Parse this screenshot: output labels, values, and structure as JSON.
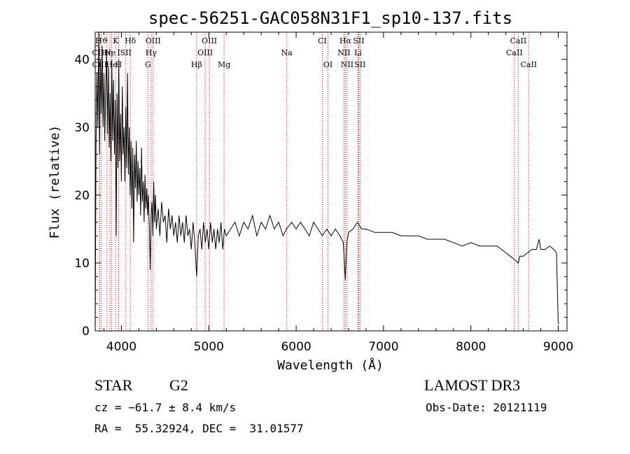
{
  "chart_data": {
    "type": "line",
    "title": "spec-56251-GAC058N31F1_sp10-137.fits",
    "xlabel": "Wavelength (Å)",
    "ylabel": "Flux (relative)",
    "xlim": [
      3700,
      9100
    ],
    "ylim": [
      0,
      44
    ],
    "xticks": [
      4000,
      5000,
      6000,
      7000,
      8000,
      9000
    ],
    "yticks": [
      0,
      10,
      20,
      30,
      40
    ],
    "series": [
      {
        "name": "flux",
        "x": [
          3700,
          3710,
          3720,
          3730,
          3740,
          3750,
          3760,
          3770,
          3780,
          3790,
          3800,
          3810,
          3820,
          3830,
          3840,
          3850,
          3860,
          3870,
          3880,
          3890,
          3900,
          3910,
          3920,
          3930,
          3940,
          3950,
          3960,
          3970,
          3980,
          3990,
          4000,
          4010,
          4020,
          4030,
          4040,
          4050,
          4060,
          4070,
          4080,
          4090,
          4100,
          4110,
          4120,
          4130,
          4140,
          4150,
          4160,
          4170,
          4180,
          4190,
          4200,
          4210,
          4220,
          4230,
          4240,
          4250,
          4260,
          4270,
          4280,
          4290,
          4300,
          4310,
          4320,
          4330,
          4340,
          4350,
          4360,
          4370,
          4380,
          4390,
          4400,
          4420,
          4440,
          4460,
          4480,
          4500,
          4520,
          4540,
          4560,
          4580,
          4600,
          4620,
          4640,
          4660,
          4680,
          4700,
          4720,
          4740,
          4760,
          4780,
          4800,
          4820,
          4840,
          4861,
          4880,
          4900,
          4920,
          4940,
          4960,
          4980,
          5000,
          5020,
          5040,
          5060,
          5080,
          5100,
          5120,
          5140,
          5160,
          5180,
          5200,
          5250,
          5300,
          5350,
          5400,
          5450,
          5500,
          5550,
          5600,
          5650,
          5700,
          5750,
          5800,
          5850,
          5890,
          5950,
          6000,
          6050,
          6100,
          6150,
          6200,
          6250,
          6300,
          6350,
          6400,
          6450,
          6500,
          6540,
          6563,
          6580,
          6600,
          6650,
          6700,
          6750,
          6800,
          6900,
          7000,
          7100,
          7200,
          7300,
          7400,
          7500,
          7600,
          7700,
          7800,
          7900,
          8000,
          8100,
          8200,
          8300,
          8400,
          8450,
          8500,
          8542,
          8560,
          8600,
          8650,
          8700,
          8750,
          8780,
          8800,
          8850,
          8900,
          8950,
          8980,
          8990,
          9000
        ],
        "y": [
          0,
          28,
          38,
          30,
          44,
          26,
          40,
          32,
          42,
          30,
          38,
          28,
          36,
          41,
          29,
          39,
          27,
          35,
          25,
          40,
          28,
          37,
          26,
          34,
          14,
          35,
          24,
          40,
          25,
          32,
          22,
          36,
          26,
          30,
          22,
          33,
          24,
          38,
          23,
          30,
          20,
          28,
          18,
          27,
          13,
          26,
          21,
          28,
          19,
          25,
          20,
          24,
          17,
          27,
          19,
          22,
          16,
          23,
          18,
          21,
          17,
          20,
          15,
          9,
          17,
          19,
          14,
          22,
          16,
          20,
          15,
          18,
          14,
          19,
          16,
          17,
          13,
          18,
          15,
          17,
          14,
          16,
          13,
          17,
          14,
          16,
          13,
          17,
          14,
          15,
          12,
          16,
          13,
          8,
          14,
          15,
          12,
          16,
          13,
          15,
          12,
          16,
          13,
          15,
          12,
          15,
          13,
          16,
          12,
          15,
          14,
          15,
          16,
          14,
          16,
          15,
          17,
          14,
          16,
          15,
          17,
          15,
          16,
          14,
          15,
          16,
          15,
          16,
          15,
          14,
          16,
          15,
          14,
          15,
          14,
          15,
          14,
          13,
          7.5,
          13,
          14.5,
          15,
          16,
          15,
          15,
          14.5,
          14.5,
          14.5,
          14,
          14,
          14,
          13.5,
          13.5,
          13.5,
          13,
          12.5,
          13,
          12.5,
          12.5,
          12.5,
          11.5,
          11,
          10.5,
          10,
          11,
          11,
          11.5,
          12,
          12,
          13.5,
          12,
          12,
          12.5,
          12,
          11.5,
          6,
          1
        ]
      }
    ],
    "line_labels": [
      {
        "label": "Hϑ",
        "wl": 3771,
        "tier": 0
      },
      {
        "label": "CIII",
        "wl": 3750,
        "tier": 1
      },
      {
        "label": "CIII",
        "wl": 3751,
        "tier": 2
      },
      {
        "label": "Hη",
        "wl": 3835,
        "tier": 1
      },
      {
        "label": "Ne",
        "wl": 3869,
        "tier": 1
      },
      {
        "label": "K",
        "wl": 3934,
        "tier": 0
      },
      {
        "label": "H",
        "wl": 3968,
        "tier": 2
      },
      {
        "label": "He",
        "wl": 3889,
        "tier": 2
      },
      {
        "label": "I",
        "wl": 3970,
        "tier": 1
      },
      {
        "label": "SII",
        "wl": 4050,
        "tier": 1
      },
      {
        "label": "Hδ",
        "wl": 4102,
        "tier": 0
      },
      {
        "label": "OIII",
        "wl": 4363,
        "tier": 0
      },
      {
        "label": "Hγ",
        "wl": 4340,
        "tier": 1
      },
      {
        "label": "G",
        "wl": 4304,
        "tier": 2
      },
      {
        "label": "Hβ",
        "wl": 4861,
        "tier": 2
      },
      {
        "label": "OIII",
        "wl": 5007,
        "tier": 0
      },
      {
        "label": "OIII",
        "wl": 4959,
        "tier": 1
      },
      {
        "label": "Mg",
        "wl": 5175,
        "tier": 2
      },
      {
        "label": "Na",
        "wl": 5893,
        "tier": 1
      },
      {
        "label": "CI",
        "wl": 6300,
        "tier": 0
      },
      {
        "label": "OI",
        "wl": 6364,
        "tier": 2
      },
      {
        "label": "Hα",
        "wl": 6563,
        "tier": 0
      },
      {
        "label": "SII",
        "wl": 6716,
        "tier": 0
      },
      {
        "label": "NII",
        "wl": 6548,
        "tier": 1
      },
      {
        "label": "Li",
        "wl": 6708,
        "tier": 1
      },
      {
        "label": "NII",
        "wl": 6584,
        "tier": 2
      },
      {
        "label": "SII",
        "wl": 6731,
        "tier": 2
      },
      {
        "label": "CaII",
        "wl": 8542,
        "tier": 0
      },
      {
        "label": "CaII",
        "wl": 8498,
        "tier": 1
      },
      {
        "label": "CaII",
        "wl": 8662,
        "tier": 2
      }
    ],
    "line_color": "#cc0000"
  },
  "info": {
    "object_class": "STAR",
    "subclass": "G2",
    "survey": "LAMOST DR3",
    "redshift": "cz = −61.7 ± 8.4 km/s",
    "obs_date": "Obs-Date: 20121119",
    "coords": "RA =  55.32924, DEC =  31.01577"
  }
}
